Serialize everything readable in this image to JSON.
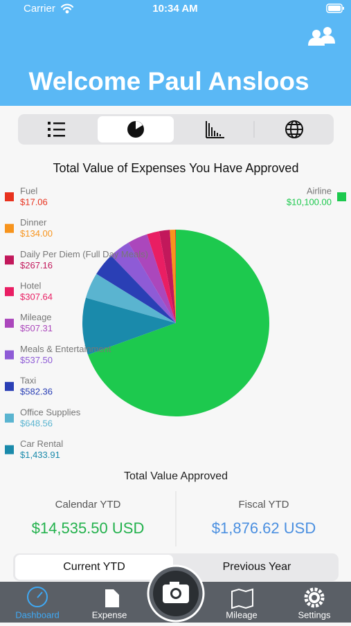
{
  "status_bar": {
    "carrier": "Carrier",
    "time": "10:34 AM"
  },
  "header": {
    "title": "Welcome Paul Ansloos"
  },
  "chart_data": {
    "type": "pie",
    "title": "Total Value of Expenses You Have Approved",
    "categories": [
      "Fuel",
      "Dinner",
      "Daily Per Diem (Full Day Meals)",
      "Hotel",
      "Mileage",
      "Meals & Entertainment",
      "Taxi",
      "Office Supplies",
      "Car Rental",
      "Airline"
    ],
    "values": [
      17.06,
      134.0,
      267.16,
      307.64,
      507.31,
      537.5,
      582.36,
      648.56,
      1433.91,
      10100.0
    ],
    "value_labels": [
      "$17.06",
      "$134.00",
      "$267.16",
      "$307.64",
      "$507.31",
      "$537.50",
      "$582.36",
      "$648.56",
      "$1,433.91",
      "$10,100.00"
    ],
    "colors": [
      "#e8321e",
      "#f7941d",
      "#c2185b",
      "#e91e63",
      "#ab47bc",
      "#8e5bd6",
      "#2a3fb5",
      "#5ab4d0",
      "#1a8aab",
      "#1dc94e"
    ]
  },
  "totals": {
    "title": "Total Value Approved",
    "calendar": {
      "label": "Calendar YTD",
      "value": "$14,535.50 USD"
    },
    "fiscal": {
      "label": "Fiscal YTD",
      "value": "$1,876.62 USD"
    }
  },
  "period_toggle": [
    "Current YTD",
    "Previous Year"
  ],
  "tab_bar": [
    "Dashboard",
    "Expense",
    "Mileage",
    "Settings"
  ]
}
